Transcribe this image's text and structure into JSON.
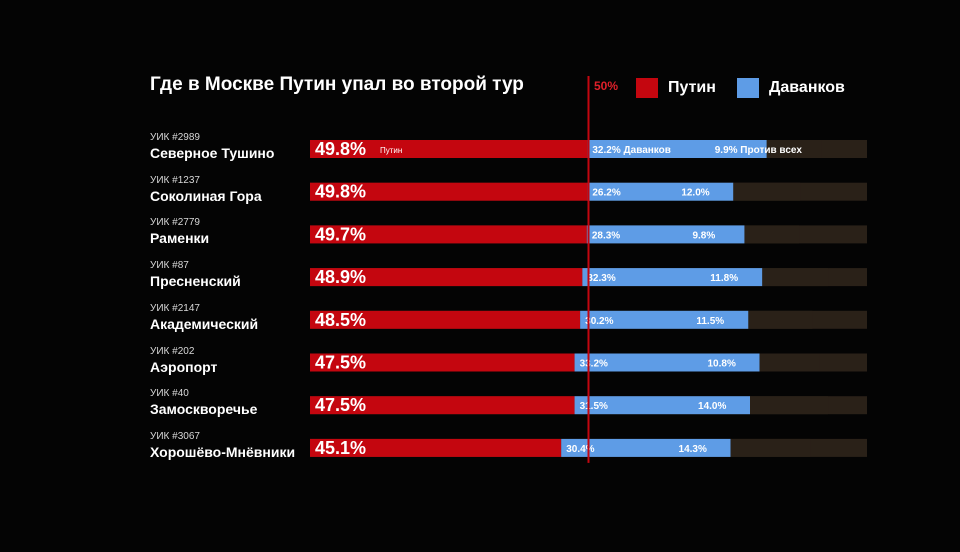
{
  "colors": {
    "putin": "#c4060f",
    "davankov": "#5e9ce6",
    "against": "#2a2118",
    "marker": "#c4060f",
    "background": "#040404"
  },
  "chart_data": {
    "type": "bar",
    "stacked": true,
    "orientation": "horizontal",
    "title": "Где в Москве Путин упал во второй тур",
    "reference_line": {
      "value": 50,
      "label": "50%"
    },
    "xlim": [
      0,
      100
    ],
    "categories": [
      {
        "id": "УИК #2989",
        "name": "Северное Тушино"
      },
      {
        "id": "УИК #1237",
        "name": "Соколиная Гора"
      },
      {
        "id": "УИК #2779",
        "name": "Раменки"
      },
      {
        "id": "УИК #87",
        "name": "Пресненский"
      },
      {
        "id": "УИК #2147",
        "name": "Академический"
      },
      {
        "id": "УИК #202",
        "name": "Аэропорт"
      },
      {
        "id": "УИК #40",
        "name": "Замоскворечье"
      },
      {
        "id": "УИК #3067",
        "name": "Хорошёво-Мнёвники"
      }
    ],
    "series": [
      {
        "name": "Путин",
        "values": [
          49.8,
          49.8,
          49.7,
          48.9,
          48.5,
          47.5,
          47.5,
          45.1
        ],
        "labels": [
          "49.8%",
          "49.8%",
          "49.7%",
          "48.9%",
          "48.5%",
          "47.5%",
          "47.5%",
          "45.1%"
        ]
      },
      {
        "name": "Даванков",
        "values": [
          32.2,
          26.2,
          28.3,
          32.3,
          30.2,
          33.2,
          31.5,
          30.4
        ],
        "labels": [
          "32.2%",
          "26.2%",
          "28.3%",
          "32.3%",
          "30.2%",
          "33.2%",
          "31.5%",
          "30.4%"
        ]
      },
      {
        "name": "Против всех",
        "values": [
          9.9,
          12.0,
          9.8,
          11.8,
          11.5,
          10.8,
          14.0,
          14.3
        ],
        "labels": [
          "9.9%",
          "12.0%",
          "9.8%",
          "11.8%",
          "11.5%",
          "10.8%",
          "14.0%",
          "14.3%"
        ]
      }
    ],
    "first_row_inline_labels": [
      "Путин",
      "Даванков",
      "Против всех"
    ]
  },
  "legend": {
    "marker_label": "50%",
    "items": [
      {
        "label": "Путин",
        "color": "#c4060f"
      },
      {
        "label": "Даванков",
        "color": "#5e9ce6"
      }
    ]
  }
}
